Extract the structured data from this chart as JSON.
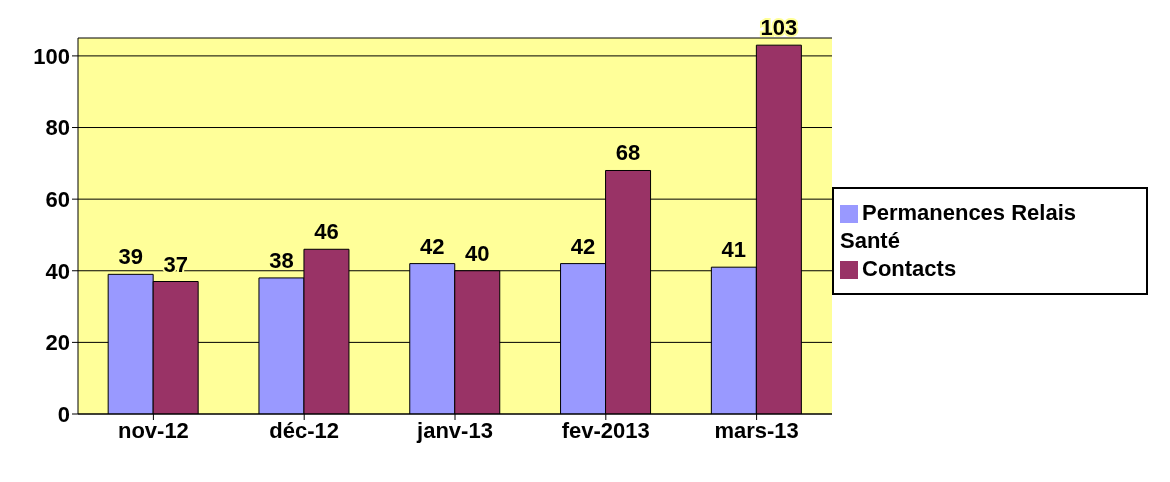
{
  "chart_data": {
    "type": "bar",
    "categories": [
      "nov-12",
      "déc-12",
      "janv-13",
      "fev-2013",
      "mars-13"
    ],
    "series": [
      {
        "name": "Permanences Relais Santé",
        "color": "#9999ff",
        "values": [
          39,
          38,
          42,
          42,
          41
        ]
      },
      {
        "name": "Contacts",
        "color": "#993366",
        "values": [
          37,
          46,
          40,
          68,
          103
        ]
      }
    ],
    "ylim": [
      0,
      105
    ],
    "yticks": [
      0,
      20,
      40,
      60,
      80,
      100
    ],
    "grid": "y",
    "legend": "right",
    "data_labels": true
  }
}
